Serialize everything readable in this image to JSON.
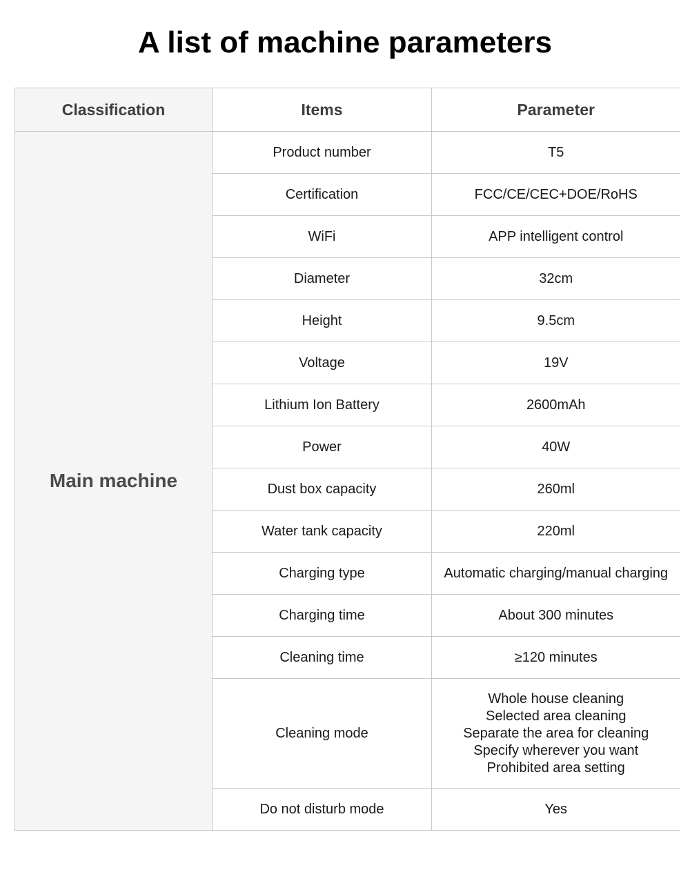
{
  "page": {
    "title": "A list of machine parameters"
  },
  "table": {
    "headers": [
      "Classification",
      "Items",
      "Parameter"
    ],
    "classification": "Main machine",
    "rows": [
      {
        "item": "Product number",
        "parameter": "T5"
      },
      {
        "item": "Certification",
        "parameter": "FCC/CE/CEC+DOE/RoHS"
      },
      {
        "item": "WiFi",
        "parameter": "APP intelligent control"
      },
      {
        "item": "Diameter",
        "parameter": "32cm"
      },
      {
        "item": "Height",
        "parameter": "9.5cm"
      },
      {
        "item": "Voltage",
        "parameter": "19V"
      },
      {
        "item": "Lithium Ion Battery",
        "parameter": "2600mAh"
      },
      {
        "item": "Power",
        "parameter": "40W"
      },
      {
        "item": "Dust box capacity",
        "parameter": "260ml"
      },
      {
        "item": "Water tank capacity",
        "parameter": "220ml"
      },
      {
        "item": "Charging type",
        "parameter": "Automatic charging/manual charging"
      },
      {
        "item": "Charging time",
        "parameter": "About 300 minutes"
      },
      {
        "item": "Cleaning time",
        "parameter": "≥120 minutes"
      },
      {
        "item": "Cleaning mode",
        "parameter": "Whole house cleaning\nSelected area cleaning\nSeparate the area for cleaning\nSpecify wherever you want\nProhibited area setting"
      },
      {
        "item": "Do not disturb mode",
        "parameter": "Yes"
      }
    ]
  },
  "colors": {
    "page_background": "#ffffff",
    "shaded_cell_background": "#f5f5f5",
    "border": "#c9c9c9",
    "title_text": "#000000",
    "header_text": "#3d3d3d",
    "classification_text": "#4a4a4a",
    "body_text": "#1a1a1a"
  }
}
